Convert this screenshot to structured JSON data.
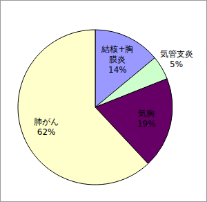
{
  "chart_data": {
    "type": "pie",
    "categories": [
      "結核+胸膜炎",
      "気管支炎",
      "気胸",
      "肺がん"
    ],
    "values": [
      14,
      5,
      19,
      62
    ],
    "value_labels": [
      "14%",
      "5%",
      "19%",
      "62%"
    ],
    "colors": [
      "#9999ff",
      "#ccffcc",
      "#660066",
      "#ffffcc"
    ],
    "data_labels": true
  }
}
